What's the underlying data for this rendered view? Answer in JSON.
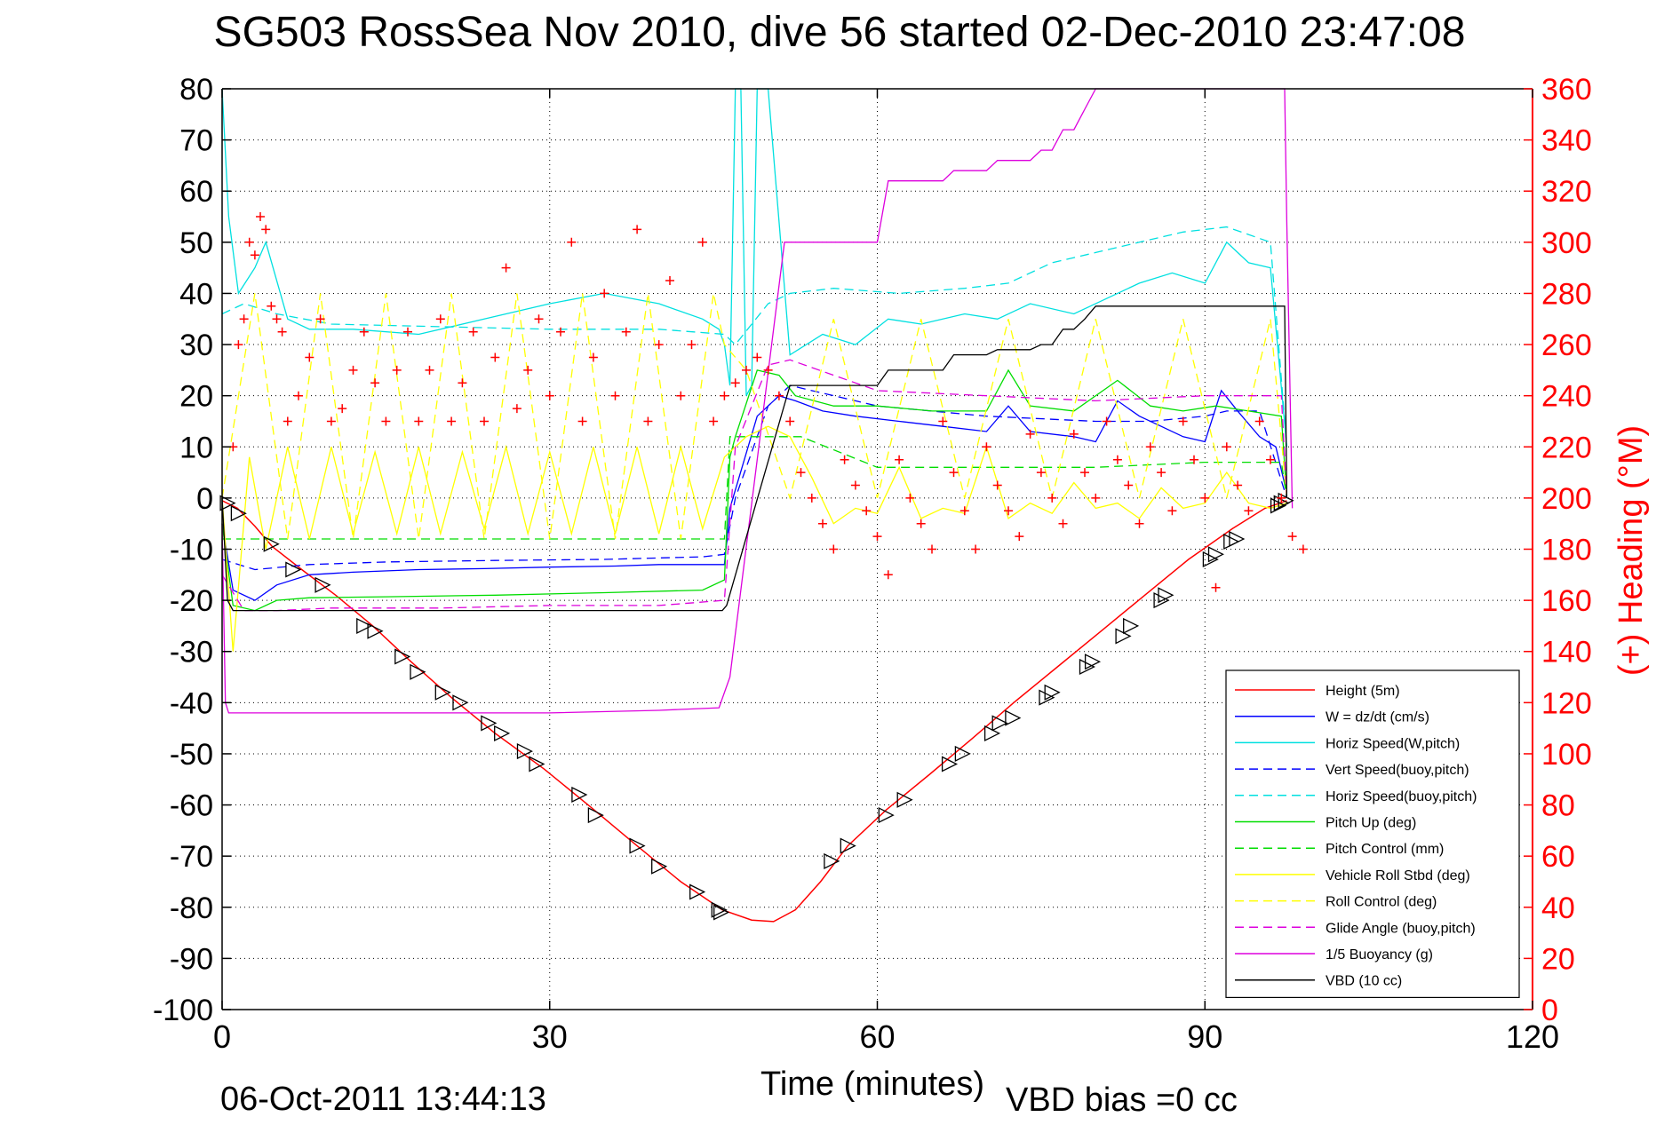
{
  "chart_data": {
    "type": "line",
    "title": "SG503 RossSea Nov 2010, dive 56 started 02-Dec-2010 23:47:08",
    "xlabel": "Time (minutes)",
    "ylabel_right": "(+) Heading (°M)",
    "footer_left": "06-Oct-2011 13:44:13",
    "footer_right": "VBD bias =0 cc",
    "xlim": [
      0,
      120
    ],
    "ylim_left": [
      -100,
      80
    ],
    "ylim_right": [
      0,
      360
    ],
    "x_ticks": [
      "0",
      "30",
      "60",
      "90",
      "120"
    ],
    "y_ticks_left": [
      "80",
      "70",
      "60",
      "50",
      "40",
      "30",
      "20",
      "10",
      "0",
      "-10",
      "-20",
      "-30",
      "-40",
      "-50",
      "-60",
      "-70",
      "-80",
      "-90",
      "-100"
    ],
    "y_ticks_right": [
      "360",
      "340",
      "320",
      "300",
      "280",
      "260",
      "240",
      "220",
      "200",
      "180",
      "160",
      "140",
      "120",
      "100",
      "80",
      "60",
      "40",
      "20",
      "0"
    ],
    "grid": true,
    "legend_position": "bottom-right",
    "colors": {
      "axis": "#000000",
      "heading": "#ff0000",
      "grid": "#000000"
    },
    "series": [
      {
        "name": "Height (5m)",
        "color": "#ff0000",
        "dash": "solid",
        "x": [
          0,
          1.4,
          3,
          4.6,
          7.3,
          10.4,
          13.8,
          17.3,
          21,
          25,
          29.5,
          33.8,
          38,
          42,
          45.8,
          48.5,
          50.5,
          52.5,
          54.8,
          57.3,
          60.8,
          64.8,
          68.7,
          72.5,
          76.5,
          80.5,
          84.5,
          88.5,
          92.5,
          95.5,
          97.5
        ],
        "y": [
          -0.5,
          -2,
          -5.5,
          -9.5,
          -14,
          -19,
          -25,
          -32,
          -39,
          -46,
          -53,
          -60.5,
          -68,
          -75,
          -80.5,
          -82.5,
          -82.8,
          -80.5,
          -75,
          -68,
          -61,
          -54,
          -47,
          -40,
          -33,
          -26,
          -19,
          -12,
          -6,
          -2,
          -0.5
        ]
      },
      {
        "name": "W = dz/dt (cm/s)",
        "color": "#0000ff",
        "dash": "solid",
        "x": [
          0,
          1,
          3,
          5,
          8,
          12,
          18,
          24,
          30,
          36,
          40,
          44,
          46,
          46.5,
          49,
          51,
          52.5,
          55,
          58,
          62,
          66,
          70,
          72,
          74,
          78,
          80,
          82,
          84,
          86,
          88,
          90,
          91.5,
          93,
          95,
          96.5,
          97.5
        ],
        "y": [
          -5,
          -18,
          -20,
          -17,
          -15,
          -14.5,
          -14,
          -13.8,
          -13.5,
          -13.3,
          -13,
          -13,
          -13,
          -2,
          16,
          20,
          19,
          17,
          16,
          15,
          14,
          13,
          18,
          13,
          12,
          11,
          19,
          16,
          14,
          12,
          11,
          21,
          17,
          12,
          10,
          1
        ]
      },
      {
        "name": "Horiz Speed(W,pitch)",
        "color": "#00e0e0",
        "dash": "solid",
        "x": [
          0,
          0.6,
          1.5,
          3,
          4,
          6,
          8,
          12,
          18,
          24,
          30,
          35,
          40,
          44,
          45.5,
          46,
          46.5,
          47,
          47.5,
          48,
          48.5,
          49,
          50,
          52,
          55,
          58,
          61,
          64,
          68,
          71,
          74,
          78,
          81,
          84,
          87,
          90,
          92,
          94,
          96,
          97.5
        ],
        "y": [
          80,
          55,
          40,
          45,
          50,
          35,
          33,
          33,
          32,
          35,
          38,
          40,
          38,
          35,
          33,
          30,
          22,
          80,
          80,
          20,
          22,
          80,
          80,
          28,
          32,
          30,
          35,
          34,
          36,
          35,
          38,
          36,
          39,
          42,
          44,
          42,
          50,
          46,
          45,
          10
        ]
      },
      {
        "name": "Vert Speed(buoy,pitch)",
        "color": "#0000ff",
        "dash": "dash",
        "x": [
          0,
          3,
          8,
          15,
          25,
          35,
          44,
          46,
          47,
          50,
          52,
          60,
          70,
          80,
          85,
          90,
          92,
          95,
          97.5
        ],
        "y": [
          -12,
          -14,
          -13,
          -12.5,
          -12.2,
          -12,
          -11.5,
          -11,
          0,
          18,
          22,
          18,
          16,
          15,
          15,
          16,
          17,
          17,
          0
        ]
      },
      {
        "name": "Horiz Speed(buoy,pitch)",
        "color": "#00e0e0",
        "dash": "dash",
        "x": [
          0,
          2,
          5,
          10,
          20,
          30,
          40,
          46,
          47,
          50,
          52,
          56,
          62,
          68,
          72,
          76,
          80,
          84,
          88,
          92,
          96,
          97.5
        ],
        "y": [
          36,
          38,
          36,
          34,
          33.5,
          33,
          33,
          32,
          30,
          38,
          40,
          41,
          40,
          41,
          42,
          46,
          48,
          50,
          52,
          53,
          50,
          10
        ]
      },
      {
        "name": "Pitch Up (deg)",
        "color": "#00dd00",
        "dash": "solid",
        "x": [
          0,
          1,
          3,
          5,
          8,
          15,
          25,
          35,
          44,
          46,
          46.5,
          47,
          49,
          51,
          52.5,
          56,
          60,
          65,
          70,
          72,
          74,
          78,
          82,
          85,
          88,
          91,
          94,
          97,
          97.5
        ],
        "y": [
          -5,
          -21,
          -22,
          -20,
          -19.5,
          -19.3,
          -19,
          -18.5,
          -18,
          -16,
          8,
          12,
          25,
          24,
          20,
          18,
          18,
          17,
          17,
          25,
          18,
          17,
          23,
          18,
          17,
          18,
          17,
          16,
          0
        ]
      },
      {
        "name": "Pitch Control (mm)",
        "color": "#00dd00",
        "dash": "dash",
        "x": [
          0,
          0.5,
          10,
          20,
          30,
          40,
          46,
          46.5,
          53,
          60,
          70,
          80,
          90,
          97,
          97.5
        ],
        "y": [
          -8,
          -8,
          -8,
          -8,
          -8,
          -8,
          -8,
          12,
          12,
          6,
          6,
          6,
          7,
          7,
          0
        ]
      },
      {
        "name": "Vehicle Roll Stbd (deg)",
        "color": "#ffff00",
        "dash": "solid",
        "x": [
          0,
          1,
          2.5,
          4,
          6,
          8,
          10,
          12,
          14,
          16,
          18,
          20,
          22,
          24,
          26,
          28,
          30,
          32,
          34,
          36,
          38,
          40,
          42,
          44,
          46,
          48,
          50,
          52,
          54,
          56,
          58,
          60,
          62,
          64,
          66,
          68,
          70,
          72,
          74,
          76,
          78,
          80,
          82,
          84,
          86,
          88,
          90,
          92,
          94,
          96,
          97.5
        ],
        "y": [
          0,
          -30,
          8,
          -10,
          10,
          -8,
          10,
          -7,
          9,
          -7,
          10,
          -7,
          9,
          -6,
          10,
          -7,
          9,
          -7,
          10,
          -7,
          10,
          -7,
          10,
          -6,
          8,
          12,
          14,
          12,
          4,
          -5,
          -2,
          -3,
          6,
          -4,
          -2,
          -3,
          10,
          -4,
          -1,
          -3,
          3,
          -2,
          -1,
          -4,
          2,
          -2,
          -1,
          5,
          -1,
          -2,
          -1
        ]
      },
      {
        "name": "Roll Control (deg)",
        "color": "#ffff00",
        "dash": "dash",
        "x": [
          0,
          3,
          6,
          9,
          12,
          15,
          18,
          21,
          24,
          27,
          30,
          33,
          36,
          39,
          42,
          45,
          46,
          48,
          52,
          56,
          60,
          64,
          68,
          72,
          76,
          80,
          84,
          88,
          92,
          96,
          97.5
        ],
        "y": [
          0,
          40,
          -8,
          40,
          -8,
          40,
          -8,
          40,
          -8,
          40,
          -8,
          40,
          -8,
          40,
          -8,
          40,
          30,
          25,
          0,
          35,
          0,
          35,
          0,
          35,
          0,
          35,
          0,
          35,
          0,
          35,
          0
        ]
      },
      {
        "name": "Glide Angle (buoy,pitch)",
        "color": "#dd00dd",
        "dash": "dash",
        "x": [
          0,
          2,
          5,
          10,
          20,
          30,
          40,
          46,
          47,
          50,
          52,
          60,
          70,
          80,
          90,
          97,
          97.5
        ],
        "y": [
          -15,
          -22,
          -22,
          -21.5,
          -21.5,
          -21,
          -21,
          -20,
          10,
          26,
          27,
          21,
          20,
          19,
          20,
          20,
          0
        ]
      },
      {
        "name": "1/5 Buoyancy (g)",
        "color": "#dd00dd",
        "dash": "solid",
        "x": [
          0,
          0.3,
          0.6,
          1,
          10,
          20,
          30,
          40,
          45.5,
          46.5,
          51.5,
          52.5,
          60,
          61,
          66,
          67,
          70,
          71,
          74,
          75,
          76,
          77,
          78,
          79,
          80,
          97.3,
          97.5,
          98
        ],
        "y": [
          -5,
          -40,
          -42,
          -42,
          -42,
          -42,
          -42,
          -41.5,
          -41,
          -35,
          50,
          50,
          50,
          62,
          62,
          64,
          64,
          66,
          66,
          68,
          68,
          72,
          72,
          76,
          80,
          80,
          54,
          -2
        ]
      },
      {
        "name": "VBD (10 cc)",
        "color": "#000000",
        "dash": "solid",
        "x": [
          0,
          0.5,
          1,
          10,
          20,
          30,
          40,
          45.8,
          46.2,
          52,
          52.5,
          60,
          61,
          66,
          67,
          70,
          71,
          74,
          75,
          76,
          77,
          78,
          79,
          80,
          97.3,
          97.5
        ],
        "y": [
          0,
          -20,
          -22,
          -22,
          -22,
          -22,
          -22,
          -22,
          -21,
          22,
          22,
          22,
          25,
          25,
          28,
          28,
          29,
          29,
          30,
          30,
          33,
          33,
          35,
          37.5,
          37.5,
          0
        ]
      }
    ],
    "heading_points": {
      "name": "(+) Heading (°M)",
      "color": "#ff0000",
      "marker": "+",
      "axis": "right",
      "x": [
        1,
        1.5,
        2,
        2.5,
        3,
        3.5,
        4,
        4.5,
        5,
        5.5,
        6,
        7,
        8,
        9,
        10,
        11,
        12,
        13,
        14,
        15,
        16,
        17,
        18,
        19,
        20,
        21,
        22,
        23,
        24,
        25,
        26,
        27,
        28,
        29,
        30,
        31,
        32,
        33,
        34,
        35,
        36,
        37,
        38,
        39,
        40,
        41,
        42,
        43,
        44,
        45,
        46,
        47,
        48,
        49,
        50,
        51,
        52,
        53,
        54,
        55,
        56,
        57,
        58,
        59,
        60,
        61,
        62,
        63,
        64,
        65,
        66,
        67,
        68,
        69,
        70,
        71,
        72,
        73,
        74,
        75,
        76,
        77,
        78,
        79,
        80,
        81,
        82,
        83,
        84,
        85,
        86,
        87,
        88,
        89,
        90,
        91,
        92,
        93,
        94,
        95,
        96,
        97,
        98,
        99
      ],
      "y": [
        220,
        260,
        270,
        300,
        295,
        310,
        305,
        275,
        270,
        265,
        230,
        240,
        255,
        270,
        230,
        235,
        250,
        265,
        245,
        230,
        250,
        265,
        230,
        250,
        270,
        230,
        245,
        265,
        230,
        255,
        290,
        235,
        250,
        270,
        240,
        265,
        300,
        230,
        255,
        280,
        240,
        265,
        305,
        230,
        260,
        285,
        240,
        260,
        300,
        230,
        240,
        245,
        250,
        255,
        250,
        240,
        230,
        210,
        200,
        190,
        180,
        215,
        205,
        195,
        185,
        170,
        215,
        200,
        190,
        180,
        230,
        210,
        195,
        180,
        220,
        205,
        195,
        185,
        225,
        210,
        200,
        190,
        225,
        210,
        200,
        230,
        215,
        205,
        190,
        220,
        210,
        195,
        230,
        215,
        200,
        165,
        220,
        205,
        195,
        230,
        215,
        200,
        185,
        180
      ]
    },
    "dive_triangles": {
      "color": "#000000",
      "marker": "triangle-right",
      "x": [
        0.5,
        1.5,
        4.5,
        6.5,
        9.2,
        13,
        14,
        16.5,
        17.9,
        20.2,
        21.8,
        24.4,
        25.6,
        27.7,
        28.8,
        32.7,
        34.2,
        38,
        40,
        43.5,
        45.5,
        45.7,
        55.8,
        57.3,
        60.8,
        62.5,
        66.6,
        67.8,
        70.5,
        71.2,
        72.4,
        75.5,
        76.0,
        79.2,
        79.7,
        82.5,
        83.2,
        86.0,
        86.4,
        90.5,
        91.0,
        92.4,
        92.9,
        96.7,
        97.0,
        97.4
      ],
      "y": [
        -1,
        -3,
        -9,
        -14,
        -17,
        -25,
        -26,
        -31,
        -34,
        -38,
        -40,
        -44,
        -46,
        -49.5,
        -52,
        -58,
        -62,
        -68,
        -72,
        -77,
        -80.5,
        -81,
        -71,
        -68,
        -62,
        -59,
        -52,
        -50,
        -46,
        -44,
        -43,
        -39,
        -38,
        -33,
        -32,
        -27,
        -25,
        -20,
        -19,
        -12,
        -11,
        -8.5,
        -8,
        -1.5,
        -1,
        -0.5
      ]
    }
  }
}
